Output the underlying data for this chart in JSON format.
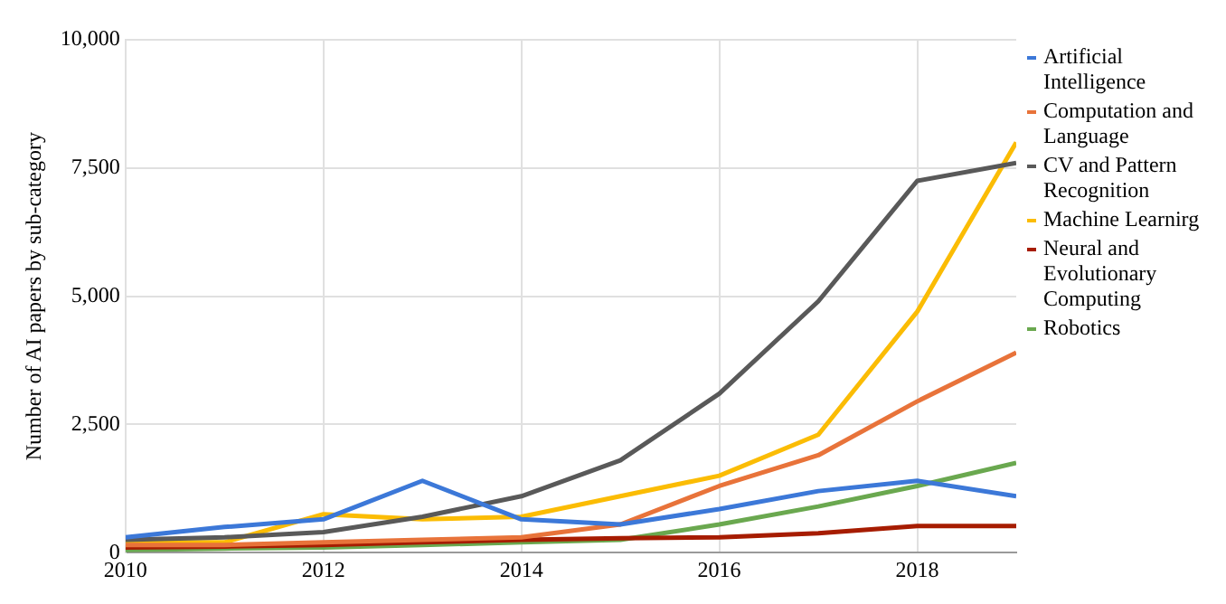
{
  "chart_data": {
    "type": "line",
    "ylabel": "Number of AI papers by sub-category",
    "x": [
      2010,
      2011,
      2012,
      2013,
      2014,
      2015,
      2016,
      2017,
      2018,
      2019
    ],
    "series": [
      {
        "name": "Artificial Intelligence",
        "color": "#3c78d8",
        "values": [
          300,
          500,
          650,
          1400,
          650,
          550,
          850,
          1200,
          1400,
          1100
        ]
      },
      {
        "name": "Computation and Language",
        "color": "#e8733a",
        "values": [
          150,
          150,
          200,
          250,
          300,
          550,
          1300,
          1900,
          2950,
          3900
        ]
      },
      {
        "name": "CV and Pattern Recognition",
        "color": "#595959",
        "values": [
          250,
          300,
          400,
          700,
          1100,
          1800,
          3100,
          4900,
          7250,
          7600
        ]
      },
      {
        "name": "Machine Learnirg",
        "color": "#fbbc04",
        "values": [
          200,
          200,
          750,
          650,
          700,
          1100,
          1500,
          2300,
          4700,
          8000
        ]
      },
      {
        "name": "Neural and Evolutionary Computing",
        "color": "#a61c00",
        "values": [
          100,
          120,
          150,
          200,
          250,
          280,
          300,
          380,
          520,
          520
        ]
      },
      {
        "name": "Robotics",
        "color": "#6aa84f",
        "values": [
          50,
          80,
          100,
          150,
          200,
          250,
          550,
          900,
          1300,
          1750
        ]
      }
    ],
    "xlim": [
      2010,
      2019
    ],
    "xticks": [
      2010,
      2012,
      2014,
      2016,
      2018
    ],
    "ylim": [
      0,
      10000
    ],
    "yticks": [
      0,
      {
        "value": 2500,
        "label": "2,500"
      },
      {
        "value": 5000,
        "label": "5,000"
      },
      {
        "value": 7500,
        "label": "7,500"
      },
      {
        "value": 10000,
        "label": "10,000"
      }
    ],
    "grid": true,
    "legend": "right",
    "marker": "none",
    "line_style": "solid"
  }
}
